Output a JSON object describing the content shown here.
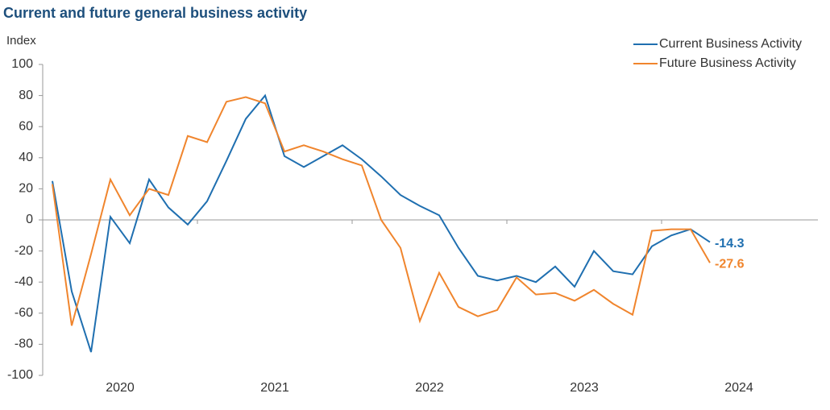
{
  "chart_data": {
    "type": "line",
    "title": "Current and future general business activity",
    "y_label": "Index",
    "categories": [
      "2020",
      null,
      null,
      null,
      null,
      null,
      null,
      null,
      "2021",
      null,
      null,
      null,
      null,
      null,
      null,
      null,
      "2022",
      null,
      null,
      null,
      null,
      null,
      null,
      null,
      "2023",
      null,
      null,
      null,
      null,
      null,
      null,
      null,
      "2024",
      null,
      null
    ],
    "series": [
      {
        "name": "Current Business Activity",
        "color": "#1f6fb0",
        "values": [
          25,
          -46,
          -85,
          2,
          -15,
          26,
          8,
          -3,
          12,
          38,
          65,
          80,
          41,
          34,
          41,
          48,
          39,
          28,
          16,
          9,
          3,
          -18,
          -36,
          -39,
          -36,
          -40,
          -30,
          -43,
          -20,
          -33,
          -35,
          -17,
          -10,
          -6,
          -14.3
        ]
      },
      {
        "name": "Future Business Activity",
        "color": "#f0852d",
        "values": [
          23,
          -68,
          -22,
          26,
          3,
          20,
          16,
          54,
          50,
          76,
          79,
          75,
          44,
          48,
          44,
          39,
          35,
          0,
          -18,
          -65,
          -34,
          -56,
          -62,
          -58,
          -37,
          -48,
          -47,
          -52,
          -45,
          -54,
          -61,
          -7,
          -6,
          -6,
          -27.6
        ]
      }
    ],
    "ylim": [
      -100,
      100
    ],
    "yticks": [
      -100,
      -80,
      -60,
      -40,
      -20,
      0,
      20,
      40,
      60,
      80,
      100
    ],
    "legend": "top-right"
  }
}
